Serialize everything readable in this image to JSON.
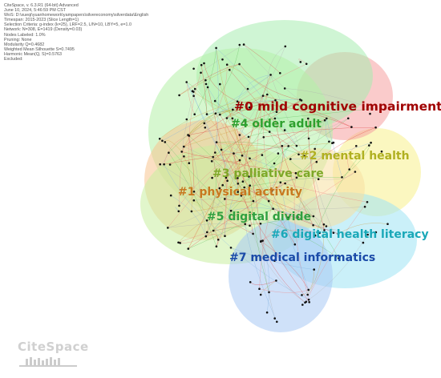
{
  "header": {
    "lines": [
      "CiteSpace, v. 6.3.R1 (64-bit) Advanced",
      "June 10, 2024, 5:46:59 PM CST",
      "WoS: D:\\xueqi\\yuanhomework\\yampapers\\silvereconomy\\silverdata\\English",
      "Timespan: 2015-2023 (Slice Length=1)",
      "Selection Criteria: g-index (k=25), LRF=2.5, L/N=10, LBY=5, e=1.0",
      "Network: N=308, E=1419 (Density=0.03)",
      "Nodes Labeled: 1.0%",
      "Pruning: None",
      "Modularity Q=0.4682",
      "Weighted Mean Silhouette S=0.7495",
      "Harmonic Mean(Q, S)=0.5763",
      "Excluded:"
    ]
  },
  "clusters": [
    {
      "label": "#0 mild cognitive impairment",
      "color": "#a00000"
    },
    {
      "label": "#4 older adult",
      "color": "#2ea02e"
    },
    {
      "label": "#2 mental health",
      "color": "#b0b020"
    },
    {
      "label": "#3 palliative care",
      "color": "#7ea828"
    },
    {
      "label": "#1 physical activity",
      "color": "#c87820"
    },
    {
      "label": "#5 digital divide",
      "color": "#30a040"
    },
    {
      "label": "#6 digital health literacy",
      "color": "#1aa8b8"
    },
    {
      "label": "#7 medical informatics",
      "color": "#1a4aa8"
    }
  ],
  "logo": {
    "text": "CiteSpace"
  }
}
